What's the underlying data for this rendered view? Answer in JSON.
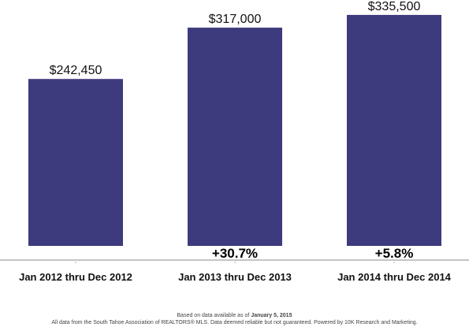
{
  "chart_data": {
    "type": "bar",
    "categories": [
      "Jan 2012 thru Dec 2012",
      "Jan 2013 thru Dec 2013",
      "Jan 2014 thru Dec 2014"
    ],
    "values": [
      242450,
      317000,
      335500
    ],
    "value_labels": [
      "$242,450",
      "$317,000",
      "$335,500"
    ],
    "change_labels": [
      "",
      "+30.7%",
      "+5.8%"
    ],
    "title": "",
    "xlabel": "",
    "ylabel": "",
    "ylim": [
      0,
      348000
    ],
    "grid": false,
    "legend": "none",
    "bar_color": "#3d3a7e"
  },
  "footer": {
    "line1_prefix": "Based on data available as of ",
    "line1_date": "January 5, 2015",
    "line2": "All data from the South Tahoe Association of REALTORS® MLS. Data deemed reliable but not guaranteed. Powered by 10K Research and Marketing."
  }
}
